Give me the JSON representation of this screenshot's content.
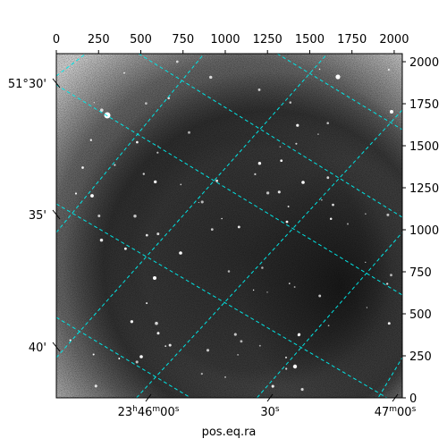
{
  "chart_data": {
    "type": "heatmap",
    "description_colormap": "gray",
    "xlabel": "pos.eq.ra",
    "ylabel": "",
    "pixel_axis_x": {
      "range": [
        0,
        2048
      ],
      "ticks": [
        0,
        250,
        500,
        750,
        1000,
        1250,
        1500,
        1750,
        2000
      ],
      "tick_labels": [
        "0",
        "250",
        "500",
        "750",
        "1000",
        "1250",
        "1500",
        "1750",
        "2000"
      ]
    },
    "pixel_axis_y": {
      "range": [
        0,
        2048
      ],
      "ticks": [
        0,
        250,
        500,
        750,
        1000,
        1250,
        1500,
        1750,
        2000
      ],
      "tick_labels": [
        "0",
        "250",
        "500",
        "750",
        "1000",
        "1250",
        "1500",
        "1750",
        "2000"
      ]
    },
    "world_axis_ra": {
      "tick_labels": [
        {
          "h": "23",
          "m": "46",
          "s": "00"
        },
        {
          "h": "",
          "m": "",
          "s": "30"
        },
        {
          "h": "",
          "m": "47",
          "s": "00"
        }
      ]
    },
    "world_axis_dec": {
      "tick_labels": [
        "51°30'",
        "35'",
        "40'"
      ]
    },
    "grid": true,
    "grid_color": "#00e5e5",
    "frame_color": "#000000"
  }
}
